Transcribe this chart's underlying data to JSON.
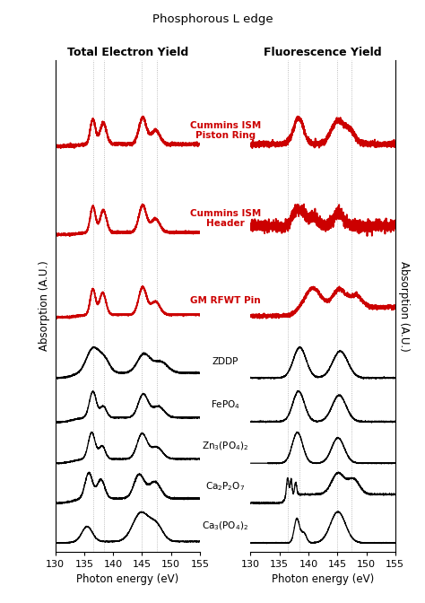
{
  "title": "Phosphorous L edge",
  "left_panel_title": "Total Electron Yield",
  "right_panel_title": "Fluorescence Yield",
  "ylabel": "Absorption (A.U.)",
  "xlabel": "Photon energy (eV)",
  "x_min": 130,
  "x_max": 155,
  "x_ticks": [
    130,
    135,
    140,
    145,
    150,
    155
  ],
  "vlines": [
    136.5,
    138.5,
    145.0,
    147.5
  ],
  "samples": [
    "Cummins ISM\nPiston Ring",
    "Cummins ISM\nHeader",
    "GM RFWT Pin",
    "ZDDP",
    "FePO$_4$",
    "Zn$_3$(PO$_4$)$_2$",
    "Ca$_2$P$_2$O$_7$",
    "Ca$_3$(PO$_4$)$_2$"
  ],
  "red_samples": [
    0,
    1,
    2
  ],
  "offsets_tey": [
    7.2,
    5.6,
    4.1,
    3.0,
    2.2,
    1.45,
    0.72,
    0.0
  ],
  "offsets_fy": [
    7.2,
    5.6,
    4.1,
    3.0,
    2.2,
    1.45,
    0.72,
    0.0
  ],
  "background_color": "#ffffff",
  "line_color_red": "#cc0000",
  "line_color_black": "#000000"
}
